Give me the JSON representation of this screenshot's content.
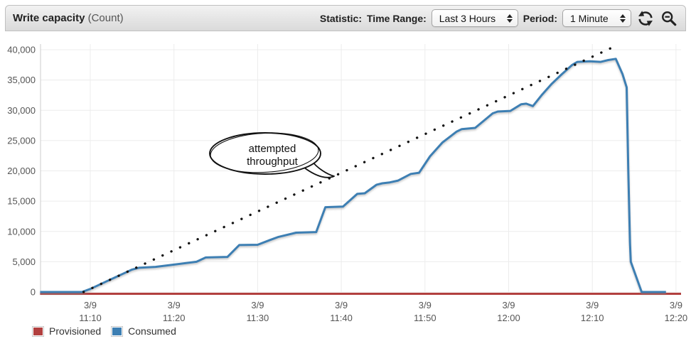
{
  "header": {
    "title": "Write capacity",
    "title_suffix": "(Count)",
    "statistic_label": "Statistic:",
    "time_range_label": "Time Range:",
    "time_range_value": "Last 3 Hours",
    "period_label": "Period:",
    "period_value": "1 Minute"
  },
  "legend": {
    "items": [
      {
        "label": "Provisioned",
        "color": "#b2403f"
      },
      {
        "label": "Consumed",
        "color": "#3d7fb3"
      }
    ]
  },
  "annotation": {
    "line1": "attempted",
    "line2": "throughput"
  },
  "chart_data": {
    "type": "line",
    "title": "Write capacity (Count)",
    "ylabel": "Count",
    "ylim": [
      0,
      40000
    ],
    "grid": true,
    "legend_position": "bottom-left",
    "yticks": [
      {
        "v": 40000,
        "label": "40,000"
      },
      {
        "v": 35000,
        "label": "35,000"
      },
      {
        "v": 30000,
        "label": "30,000"
      },
      {
        "v": 25000,
        "label": "25,000"
      },
      {
        "v": 20000,
        "label": "20,000"
      },
      {
        "v": 15000,
        "label": "15,000"
      },
      {
        "v": 10000,
        "label": "10,000"
      },
      {
        "v": 5000,
        "label": "5,000"
      },
      {
        "v": 0,
        "label": "0"
      }
    ],
    "xticks": [
      {
        "t": 70,
        "date": "3/9",
        "time": "11:10"
      },
      {
        "t": 80,
        "date": "3/9",
        "time": "11:20"
      },
      {
        "t": 90,
        "date": "3/9",
        "time": "11:30"
      },
      {
        "t": 100,
        "date": "3/9",
        "time": "11:40"
      },
      {
        "t": 110,
        "date": "3/9",
        "time": "11:50"
      },
      {
        "t": 120,
        "date": "3/9",
        "time": "12:00"
      },
      {
        "t": 130,
        "date": "3/9",
        "time": "12:10"
      },
      {
        "t": 140,
        "date": "3/9",
        "time": "12:20"
      }
    ],
    "x_unit": "minutes after 11:00 on 3/9",
    "series": [
      {
        "name": "Provisioned",
        "color": "#b2403f",
        "style": "solid",
        "points": [
          [
            64.0,
            0
          ],
          [
            140.6,
            0
          ]
        ]
      },
      {
        "name": "Consumed",
        "color": "#3d7fb3",
        "style": "solid",
        "points": [
          [
            64.0,
            0
          ],
          [
            69.0,
            0
          ],
          [
            70,
            500
          ],
          [
            71,
            1150
          ],
          [
            72,
            1790
          ],
          [
            73,
            2430
          ],
          [
            74,
            3070
          ],
          [
            75,
            3710
          ],
          [
            75.8,
            4000
          ],
          [
            77.8,
            4150
          ],
          [
            79.6,
            4460
          ],
          [
            82.7,
            5000
          ],
          [
            83.8,
            5700
          ],
          [
            86.4,
            5800
          ],
          [
            87.8,
            7750
          ],
          [
            90.0,
            7800
          ],
          [
            91.5,
            8600
          ],
          [
            92.5,
            9100
          ],
          [
            94.6,
            9800
          ],
          [
            97.0,
            9900
          ],
          [
            98.1,
            14000
          ],
          [
            100.2,
            14100
          ],
          [
            101.9,
            16200
          ],
          [
            102.8,
            16300
          ],
          [
            104.2,
            17700
          ],
          [
            104.9,
            17950
          ],
          [
            105.8,
            18100
          ],
          [
            106.8,
            18400
          ],
          [
            108.3,
            19500
          ],
          [
            109.3,
            19700
          ],
          [
            110.6,
            22400
          ],
          [
            112.1,
            24700
          ],
          [
            113.8,
            26500
          ],
          [
            114.4,
            26900
          ],
          [
            116.0,
            27100
          ],
          [
            118.1,
            29500
          ],
          [
            118.7,
            29800
          ],
          [
            120.2,
            29900
          ],
          [
            121.5,
            31000
          ],
          [
            122.1,
            31100
          ],
          [
            122.9,
            30700
          ],
          [
            124.0,
            32600
          ],
          [
            125.1,
            34300
          ],
          [
            126.3,
            35900
          ],
          [
            127.6,
            37500
          ],
          [
            128.2,
            38000
          ],
          [
            129.7,
            38100
          ],
          [
            131.0,
            38000
          ],
          [
            131.9,
            38300
          ],
          [
            132.8,
            38500
          ],
          [
            133.6,
            36000
          ],
          [
            134.1,
            33800
          ],
          [
            134.3,
            20000
          ],
          [
            134.5,
            8000
          ],
          [
            134.6,
            5000
          ],
          [
            135.9,
            0
          ],
          [
            138.8,
            0
          ]
        ]
      },
      {
        "name": "attempted throughput",
        "color": "#141414",
        "style": "dotted",
        "points": [
          [
            69.2,
            0
          ],
          [
            132.6,
            40500
          ]
        ]
      }
    ]
  }
}
